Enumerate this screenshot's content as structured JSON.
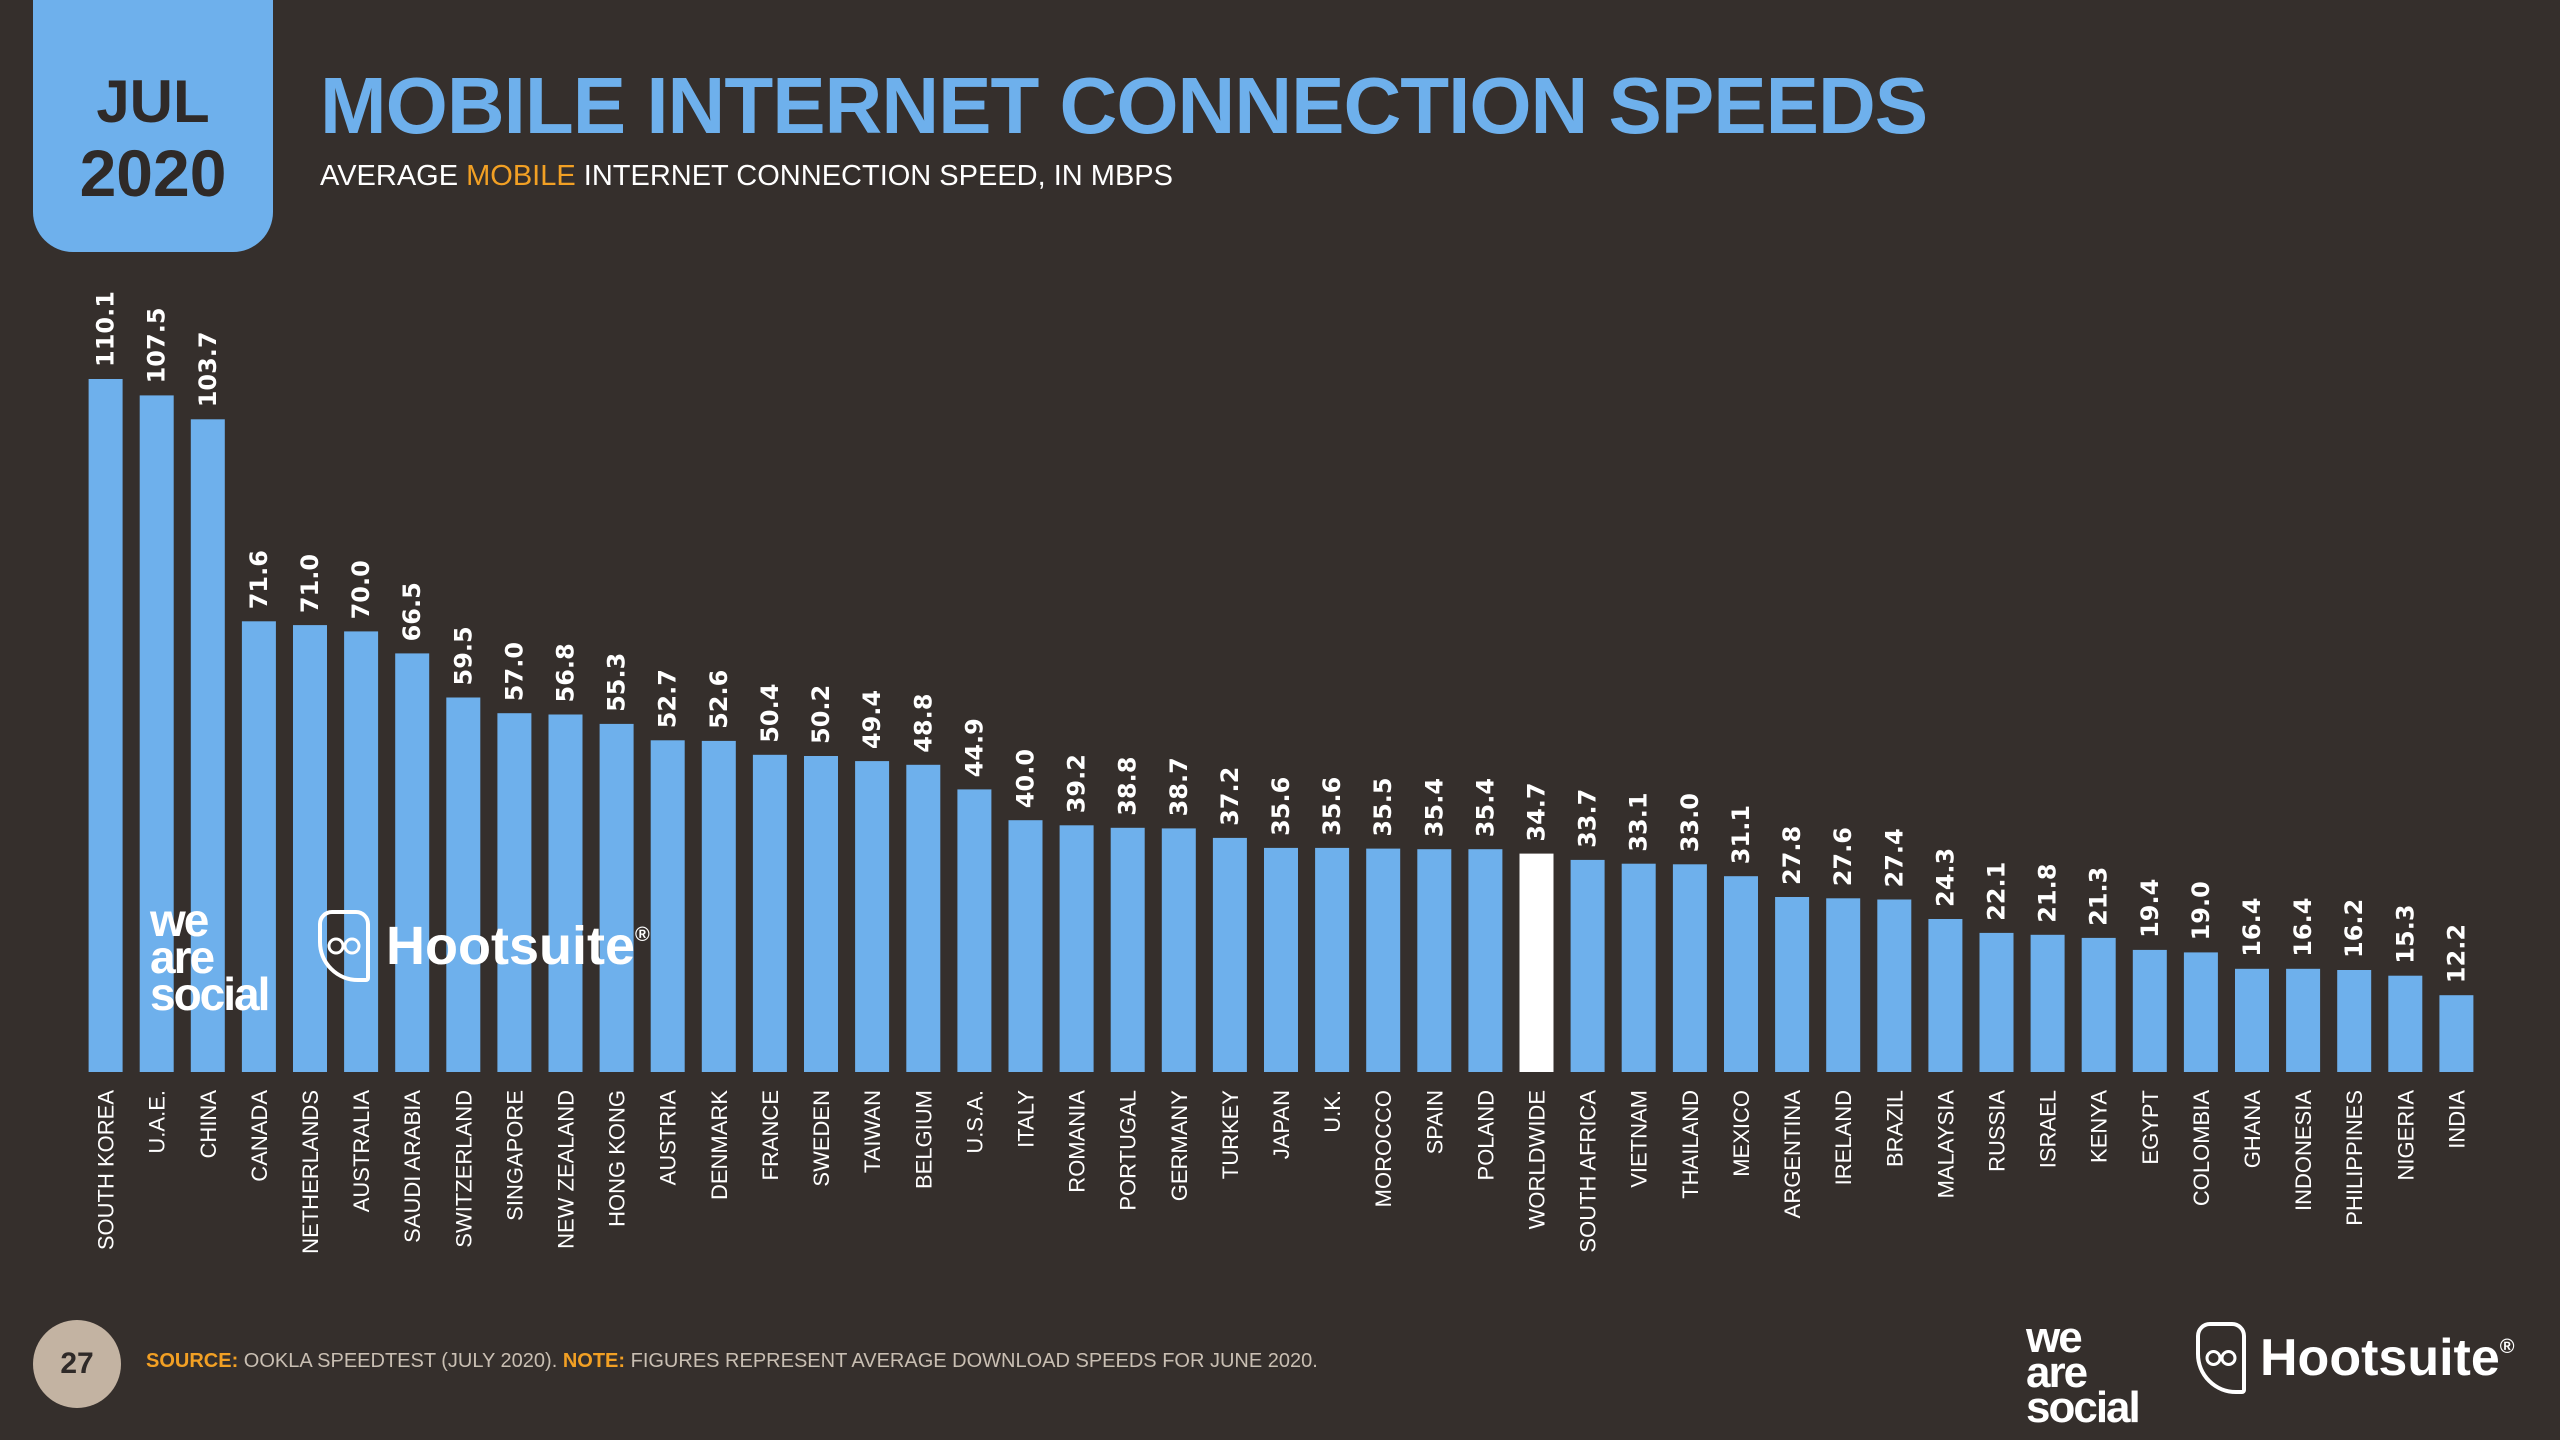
{
  "badge": {
    "month": "JUL",
    "year": "2020"
  },
  "title": "MOBILE INTERNET CONNECTION SPEEDS",
  "subtitle": {
    "pre": "AVERAGE ",
    "highlight": "MOBILE",
    "post": " INTERNET CONNECTION SPEED, IN MBPS"
  },
  "footer": {
    "page_number": "27",
    "source_label": "SOURCE:",
    "source_text": " OOKLA SPEEDTEST (JULY 2020). ",
    "note_label": "NOTE:",
    "note_text": " FIGURES REPRESENT AVERAGE DOWNLOAD SPEEDS FOR JUNE 2020."
  },
  "logos": {
    "wearesocial": [
      "we",
      "are",
      "social"
    ],
    "hootsuite": "Hootsuite",
    "hootsuite_mark": "®",
    "owl_icon": "owl-icon"
  },
  "colors": {
    "bar": "#6eb0ec",
    "highlight_bar": "#ffffff",
    "accent": "#f2a024",
    "background": "#352f2c"
  },
  "chart_data": {
    "type": "bar",
    "title": "MOBILE INTERNET CONNECTION SPEEDS",
    "subtitle": "AVERAGE MOBILE INTERNET CONNECTION SPEED, IN MBPS",
    "categories": [
      "SOUTH KOREA",
      "U.A.E.",
      "CHINA",
      "CANADA",
      "NETHERLANDS",
      "AUSTRALIA",
      "SAUDI ARABIA",
      "SWITZERLAND",
      "SINGAPORE",
      "NEW ZEALAND",
      "HONG KONG",
      "AUSTRIA",
      "DENMARK",
      "FRANCE",
      "SWEDEN",
      "TAIWAN",
      "BELGIUM",
      "U.S.A.",
      "ITALY",
      "ROMANIA",
      "PORTUGAL",
      "GERMANY",
      "TURKEY",
      "JAPAN",
      "U.K.",
      "MOROCCO",
      "SPAIN",
      "POLAND",
      "WORLDWIDE",
      "SOUTH AFRICA",
      "VIETNAM",
      "THAILAND",
      "MEXICO",
      "ARGENTINA",
      "IRELAND",
      "BRAZIL",
      "MALAYSIA",
      "RUSSIA",
      "ISRAEL",
      "KENYA",
      "EGYPT",
      "COLOMBIA",
      "GHANA",
      "INDONESIA",
      "PHILIPPINES",
      "NIGERIA",
      "INDIA"
    ],
    "values": [
      110.1,
      107.5,
      103.7,
      71.6,
      71.0,
      70.0,
      66.5,
      59.5,
      57.0,
      56.8,
      55.3,
      52.7,
      52.6,
      50.4,
      50.2,
      49.4,
      48.8,
      44.9,
      40.0,
      39.2,
      38.8,
      38.7,
      37.2,
      35.6,
      35.6,
      35.5,
      35.4,
      35.4,
      34.7,
      33.7,
      33.1,
      33.0,
      31.1,
      27.8,
      27.6,
      27.4,
      24.3,
      22.1,
      21.8,
      21.3,
      19.4,
      19.0,
      16.4,
      16.4,
      16.2,
      15.3,
      12.2
    ],
    "value_labels": [
      "110.1",
      "107.5",
      "103.7",
      "71.6",
      "71.0",
      "70.0",
      "66.5",
      "59.5",
      "57.0",
      "56.8",
      "55.3",
      "52.7",
      "52.6",
      "50.4",
      "50.2",
      "49.4",
      "48.8",
      "44.9",
      "40.0",
      "39.2",
      "38.8",
      "38.7",
      "37.2",
      "35.6",
      "35.6",
      "35.5",
      "35.4",
      "35.4",
      "34.7",
      "33.7",
      "33.1",
      "33.0",
      "31.1",
      "27.8",
      "27.6",
      "27.4",
      "24.3",
      "22.1",
      "21.8",
      "21.3",
      "19.4",
      "19.0",
      "16.4",
      "16.4",
      "16.2",
      "15.3",
      "12.2"
    ],
    "highlight_category": "WORLDWIDE",
    "ylim": [
      0,
      110.1
    ],
    "grid": false,
    "legend": "none"
  }
}
